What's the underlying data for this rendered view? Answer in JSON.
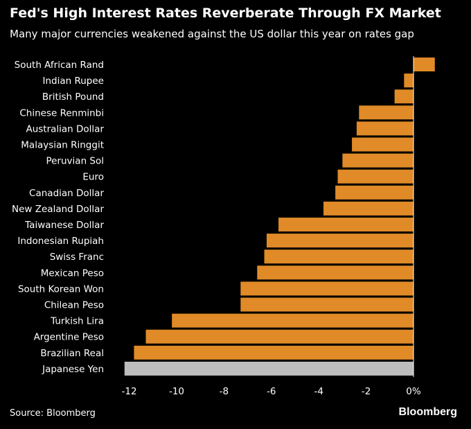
{
  "header": {
    "title": "Fed's High Interest Rates Reverberate Through FX Market",
    "subtitle": "Many major currencies weakened against the US dollar this year on rates gap"
  },
  "footer": {
    "source": "Source: Bloomberg",
    "brand": "Bloomberg"
  },
  "colors": {
    "background": "#000000",
    "bar": "#e08a28",
    "highlight_bar": "#bdbdbd",
    "text": "#ffffff",
    "zero_line": "#ffffff"
  },
  "chart_data": {
    "type": "bar",
    "orientation": "horizontal",
    "title": "Fed's High Interest Rates Reverberate Through FX Market",
    "subtitle": "Many major currencies weakened against the US dollar this year on rates gap",
    "xlabel": "",
    "ylabel": "",
    "xlim": [
      -12.4,
      0.9
    ],
    "xticks": [
      -12,
      -10,
      -8,
      -6,
      -4,
      -2,
      0
    ],
    "xtick_labels": [
      "-12",
      "-10",
      "-8",
      "-6",
      "-4",
      "-2",
      "0%"
    ],
    "grid": false,
    "highlighted_category": "Japanese Yen",
    "categories": [
      "South African Rand",
      "Indian Rupee",
      "British Pound",
      "Chinese Renminbi",
      "Australian Dollar",
      "Malaysian Ringgit",
      "Peruvian Sol",
      "Euro",
      "Canadian Dollar",
      "New Zealand Dollar",
      "Taiwanese Dollar",
      "Indonesian Rupiah",
      "Swiss Franc",
      "Mexican Peso",
      "South Korean Won",
      "Chilean Peso",
      "Turkish Lira",
      "Argentine Peso",
      "Brazilian Real",
      "Japanese Yen"
    ],
    "values": [
      0.9,
      -0.4,
      -0.8,
      -2.3,
      -2.4,
      -2.6,
      -3.0,
      -3.2,
      -3.3,
      -3.8,
      -5.7,
      -6.2,
      -6.3,
      -6.6,
      -7.3,
      -7.3,
      -10.2,
      -11.3,
      -11.8,
      -12.2
    ]
  }
}
